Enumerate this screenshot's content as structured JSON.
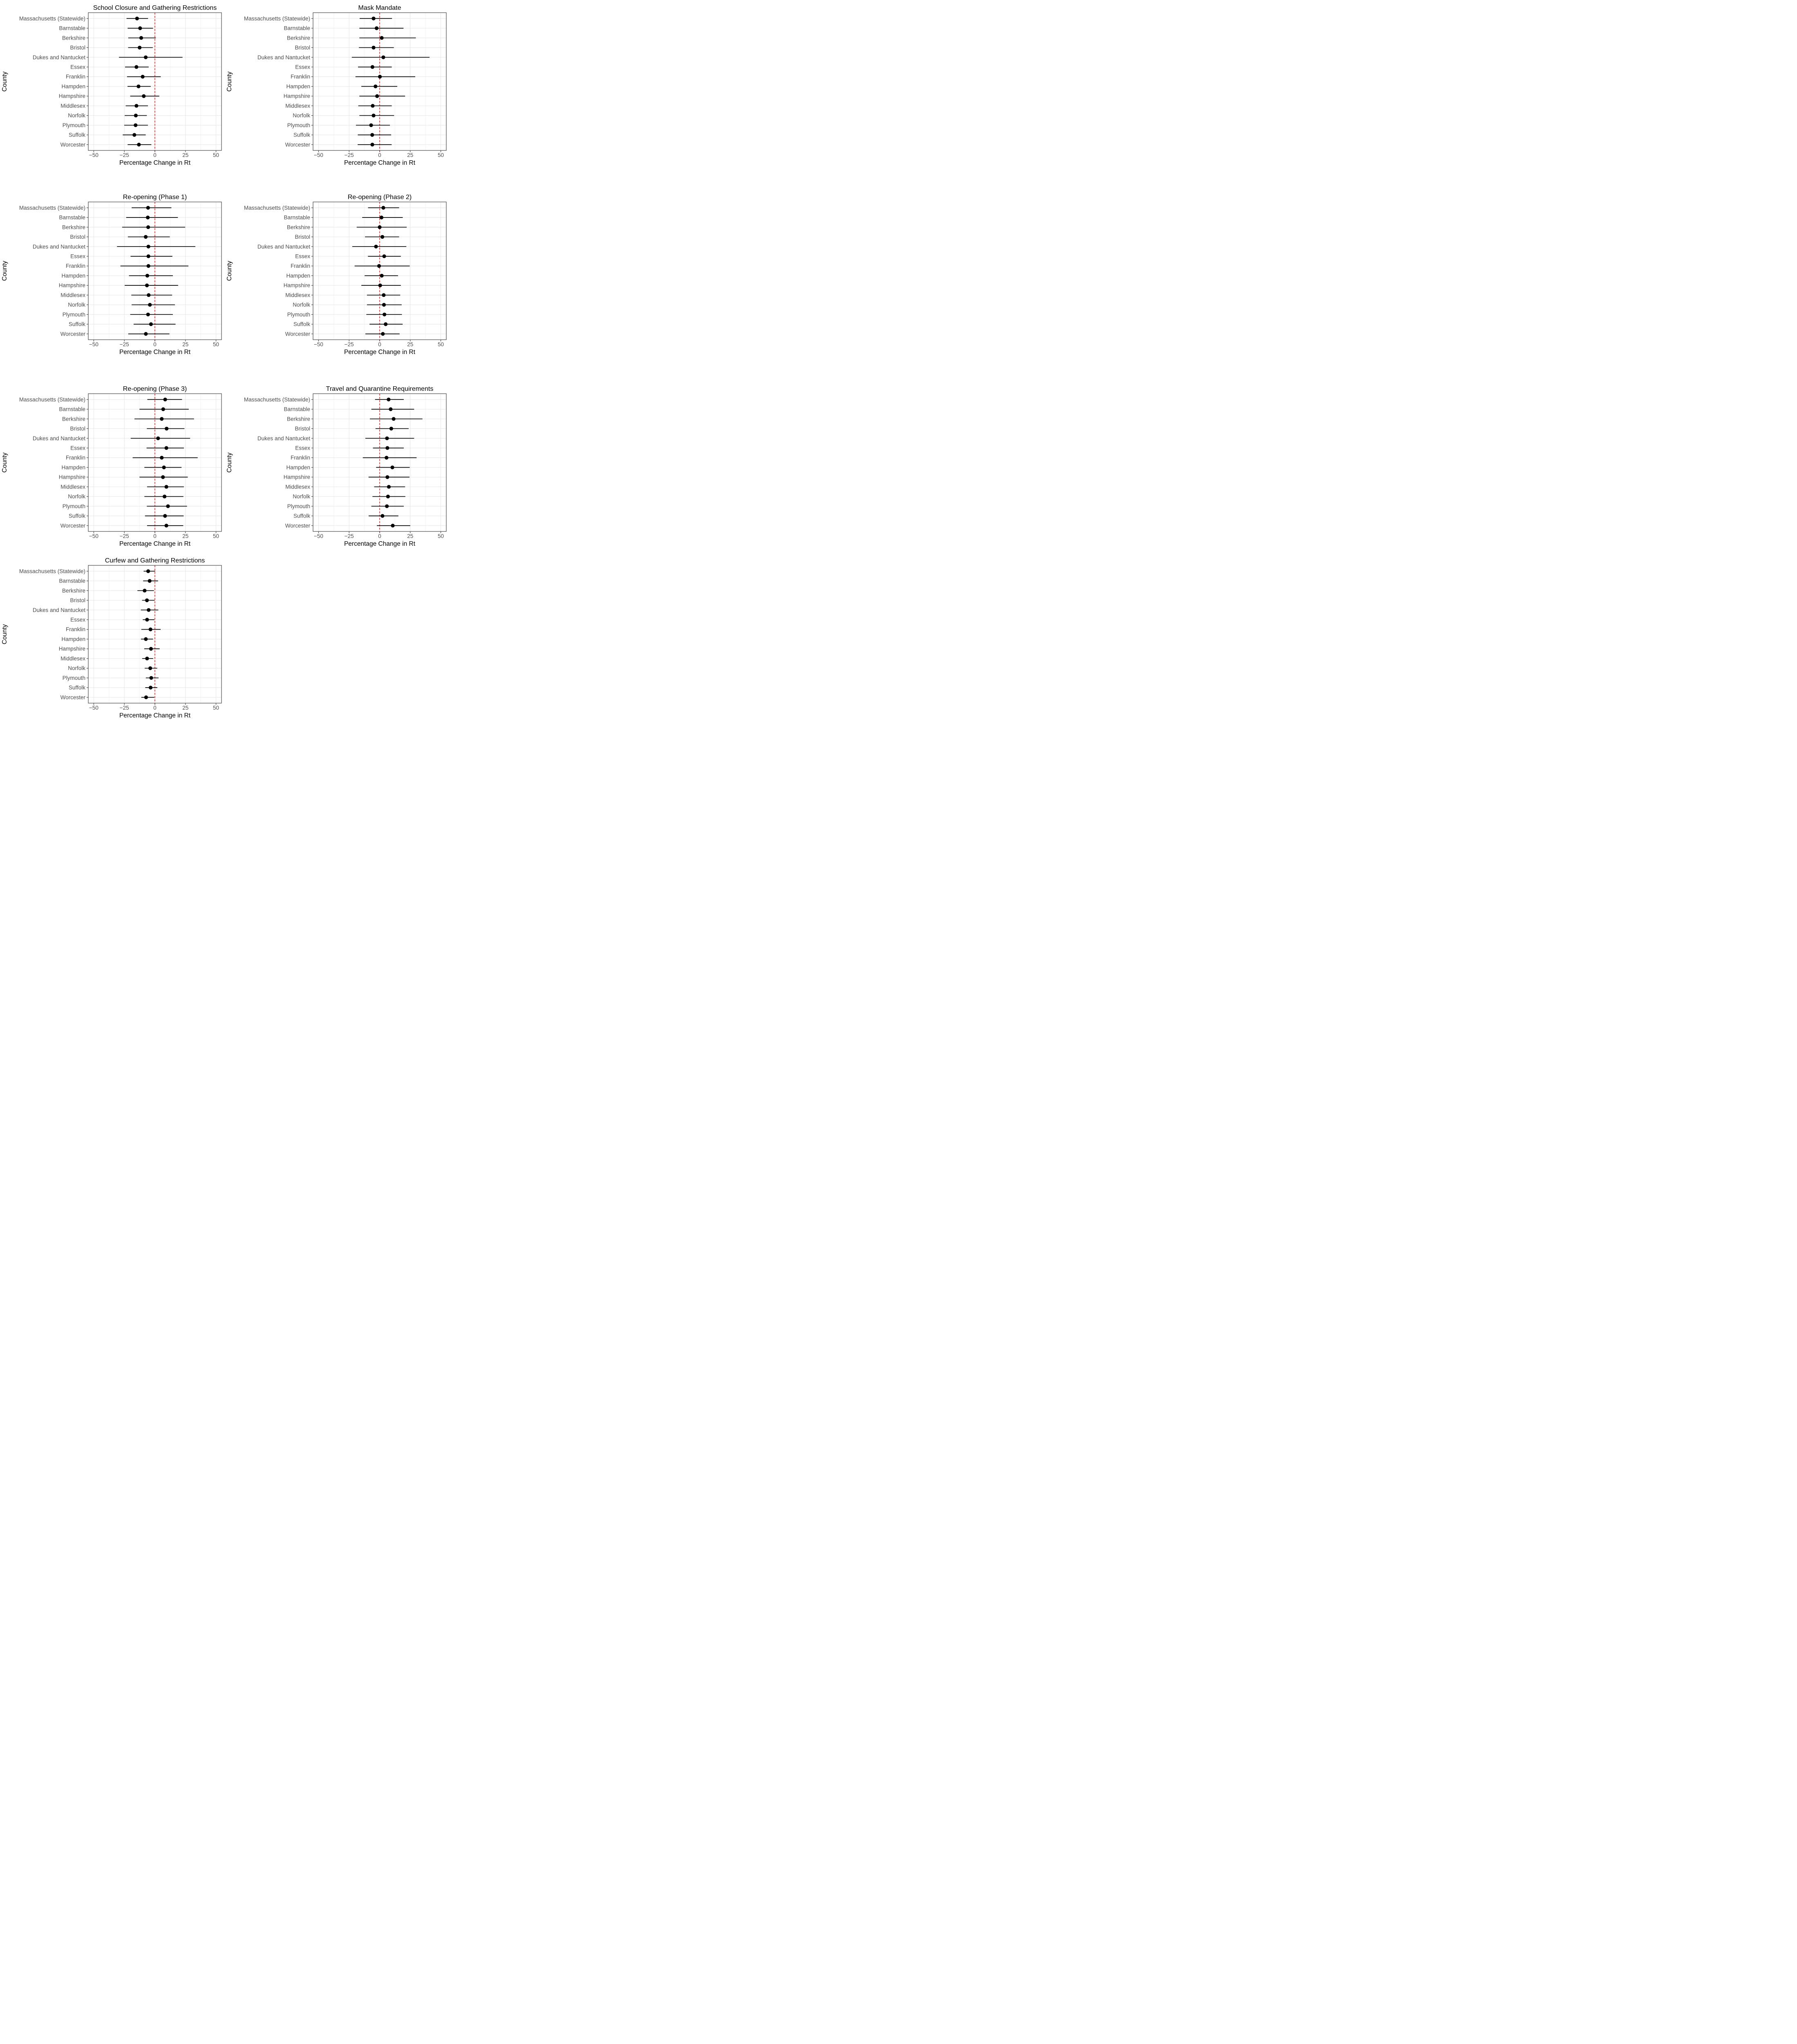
{
  "figure": {
    "xlabel": "Percentage Change in Rt",
    "ylabel": "County",
    "x_tick_labels": [
      "−50",
      "−25",
      "0",
      "25",
      "50"
    ],
    "x_ticks": [
      -50,
      -25,
      0,
      25,
      50
    ],
    "x_minor_ticks": [
      -37.5,
      -12.5,
      12.5,
      37.5
    ],
    "xlim": [
      -54.5,
      54.5
    ],
    "reference_line_x": 0,
    "counties": [
      "Massachusetts (Statewide)",
      "Barnstable",
      "Berkshire",
      "Bristol",
      "Dukes and Nantucket",
      "Essex",
      "Franklin",
      "Hampden",
      "Hampshire",
      "Middlesex",
      "Norfolk",
      "Plymouth",
      "Suffolk",
      "Worcester"
    ],
    "colors": {
      "point": "#000000",
      "ci_line": "#000000",
      "reference_line": "#ff0000",
      "grid_major": "#e6e6e6",
      "grid_minor": "#f2f2f2",
      "axis_text": "#4d4d4d",
      "axis_title": "#000000",
      "panel_border": "#474747",
      "tick_mark": "#333333",
      "background": "#ffffff"
    }
  },
  "chart_data": [
    {
      "type": "scatter",
      "title": "School Closure and Gathering Restrictions",
      "xlabel": "Percentage Change in Rt",
      "ylabel": "County",
      "x_ticks": [
        -50,
        -25,
        0,
        25,
        50
      ],
      "xlim": [
        -54.5,
        54.5
      ],
      "ref_line_x": 0,
      "grid": true,
      "legend": "none",
      "layout": {
        "row": 0,
        "col": 0
      },
      "categories": [
        "Massachusetts (Statewide)",
        "Barnstable",
        "Berkshire",
        "Bristol",
        "Dukes and Nantucket",
        "Essex",
        "Franklin",
        "Hampden",
        "Hampshire",
        "Middlesex",
        "Norfolk",
        "Plymouth",
        "Suffolk",
        "Worcester"
      ],
      "estimates": [
        -14.6,
        -12.1,
        -11.2,
        -12.5,
        -7.5,
        -15.1,
        -10.0,
        -13.4,
        -9.1,
        -15.1,
        -15.6,
        -15.8,
        -16.8,
        -13.1
      ],
      "ci_lower": [
        -23.2,
        -22.3,
        -21.8,
        -21.9,
        -29.4,
        -24.4,
        -22.8,
        -22.4,
        -20.2,
        -23.9,
        -24.7,
        -25.1,
        -26.3,
        -22.3
      ],
      "ci_upper": [
        -5.6,
        -1.5,
        0.8,
        -1.7,
        22.6,
        -5.1,
        4.8,
        -3.4,
        3.6,
        -5.7,
        -6.6,
        -5.7,
        -7.5,
        -2.9
      ]
    },
    {
      "type": "scatter",
      "title": "Mask Mandate",
      "xlabel": "Percentage Change in Rt",
      "ylabel": "County",
      "x_ticks": [
        -50,
        -25,
        0,
        25,
        50
      ],
      "xlim": [
        -54.5,
        54.5
      ],
      "ref_line_x": 0,
      "grid": true,
      "legend": "none",
      "layout": {
        "row": 0,
        "col": 1
      },
      "categories": [
        "Massachusetts (Statewide)",
        "Barnstable",
        "Berkshire",
        "Bristol",
        "Dukes and Nantucket",
        "Essex",
        "Franklin",
        "Hampden",
        "Hampshire",
        "Middlesex",
        "Norfolk",
        "Plymouth",
        "Suffolk",
        "Worcester"
      ],
      "estimates": [
        -5.0,
        -2.5,
        1.7,
        -5.0,
        3.0,
        -5.9,
        0.2,
        -3.4,
        -2.1,
        -5.7,
        -5.0,
        -7.0,
        -6.1,
        -6.0
      ],
      "ci_lower": [
        -16.4,
        -16.6,
        -16.6,
        -17.0,
        -22.8,
        -17.7,
        -19.8,
        -15.0,
        -16.6,
        -17.5,
        -16.6,
        -19.4,
        -17.9,
        -18.0
      ],
      "ci_upper": [
        10.1,
        19.5,
        29.6,
        11.6,
        40.8,
        9.9,
        29.1,
        14.4,
        20.8,
        9.9,
        11.8,
        8.4,
        9.4,
        9.8
      ]
    },
    {
      "type": "scatter",
      "title": "Re-opening (Phase 1)",
      "xlabel": "Percentage Change in Rt",
      "ylabel": "County",
      "x_ticks": [
        -50,
        -25,
        0,
        25,
        50
      ],
      "xlim": [
        -54.5,
        54.5
      ],
      "ref_line_x": 0,
      "grid": true,
      "legend": "none",
      "layout": {
        "row": 1,
        "col": 0
      },
      "categories": [
        "Massachusetts (Statewide)",
        "Barnstable",
        "Berkshire",
        "Bristol",
        "Dukes and Nantucket",
        "Essex",
        "Franklin",
        "Hampden",
        "Hampshire",
        "Middlesex",
        "Norfolk",
        "Plymouth",
        "Suffolk",
        "Worcester"
      ],
      "estimates": [
        -5.6,
        -5.8,
        -5.5,
        -7.5,
        -5.3,
        -5.3,
        -5.3,
        -6.2,
        -6.5,
        -5.1,
        -4.1,
        -5.6,
        -3.2,
        -7.4
      ],
      "ci_lower": [
        -19.0,
        -23.5,
        -26.8,
        -22.1,
        -31.0,
        -19.9,
        -28.2,
        -21.2,
        -24.7,
        -19.3,
        -19.0,
        -20.2,
        -17.4,
        -21.8
      ],
      "ci_upper": [
        13.5,
        18.8,
        24.8,
        12.2,
        33.1,
        14.3,
        27.4,
        14.7,
        19.0,
        14.1,
        16.4,
        14.7,
        16.9,
        11.9
      ]
    },
    {
      "type": "scatter",
      "title": "Re-opening (Phase 2)",
      "xlabel": "Percentage Change in Rt",
      "ylabel": "County",
      "x_ticks": [
        -50,
        -25,
        0,
        25,
        50
      ],
      "xlim": [
        -54.5,
        54.5
      ],
      "ref_line_x": 0,
      "grid": true,
      "legend": "none",
      "layout": {
        "row": 1,
        "col": 1
      },
      "categories": [
        "Massachusetts (Statewide)",
        "Barnstable",
        "Berkshire",
        "Bristol",
        "Dukes and Nantucket",
        "Essex",
        "Franklin",
        "Hampden",
        "Hampshire",
        "Middlesex",
        "Norfolk",
        "Plymouth",
        "Suffolk",
        "Worcester"
      ],
      "estimates": [
        3.0,
        1.5,
        0.0,
        2.2,
        -3.0,
        3.7,
        -0.5,
        1.7,
        0.4,
        3.3,
        3.5,
        3.9,
        4.9,
        2.6
      ],
      "ci_lower": [
        -9.5,
        -14.3,
        -18.8,
        -12.0,
        -22.4,
        -9.6,
        -20.5,
        -12.3,
        -15.0,
        -10.4,
        -10.4,
        -10.9,
        -8.3,
        -11.7
      ],
      "ci_upper": [
        15.9,
        18.9,
        22.1,
        15.9,
        21.8,
        17.3,
        24.6,
        15.0,
        17.3,
        16.8,
        18.0,
        18.2,
        18.8,
        16.3
      ]
    },
    {
      "type": "scatter",
      "title": "Re-opening (Phase 3)",
      "xlabel": "Percentage Change in Rt",
      "ylabel": "County",
      "x_ticks": [
        -50,
        -25,
        0,
        25,
        50
      ],
      "xlim": [
        -54.5,
        54.5
      ],
      "ref_line_x": 0,
      "grid": true,
      "legend": "none",
      "layout": {
        "row": 2,
        "col": 0
      },
      "categories": [
        "Massachusetts (Statewide)",
        "Barnstable",
        "Berkshire",
        "Bristol",
        "Dukes and Nantucket",
        "Essex",
        "Franklin",
        "Hampden",
        "Hampshire",
        "Middlesex",
        "Norfolk",
        "Plymouth",
        "Suffolk",
        "Worcester"
      ],
      "estimates": [
        8.4,
        6.8,
        5.6,
        9.6,
        2.6,
        9.4,
        5.6,
        7.4,
        6.6,
        9.4,
        7.9,
        10.7,
        8.3,
        9.4
      ],
      "ci_lower": [
        -6.2,
        -12.6,
        -16.7,
        -6.6,
        -19.8,
        -6.8,
        -18.2,
        -8.6,
        -12.6,
        -6.4,
        -8.6,
        -6.6,
        -8.1,
        -6.4
      ],
      "ci_upper": [
        22.2,
        27.7,
        32.0,
        24.2,
        28.8,
        23.7,
        35.0,
        21.8,
        26.9,
        23.7,
        23.3,
        26.3,
        23.5,
        23.2
      ]
    },
    {
      "type": "scatter",
      "title": "Travel and Quarantine Requirements",
      "xlabel": "Percentage Change in Rt",
      "ylabel": "County",
      "x_ticks": [
        -50,
        -25,
        0,
        25,
        50
      ],
      "xlim": [
        -54.5,
        54.5
      ],
      "ref_line_x": 0,
      "grid": true,
      "legend": "none",
      "layout": {
        "row": 2,
        "col": 1
      },
      "categories": [
        "Massachusetts (Statewide)",
        "Barnstable",
        "Berkshire",
        "Bristol",
        "Dukes and Nantucket",
        "Essex",
        "Franklin",
        "Hampden",
        "Hampshire",
        "Middlesex",
        "Norfolk",
        "Plymouth",
        "Suffolk",
        "Worcester"
      ],
      "estimates": [
        7.3,
        9.0,
        11.4,
        9.5,
        6.0,
        6.3,
        5.6,
        10.4,
        6.3,
        7.5,
        6.8,
        5.9,
        2.3,
        10.7
      ],
      "ci_lower": [
        -3.8,
        -6.8,
        -8.0,
        -3.4,
        -11.7,
        -5.5,
        -13.8,
        -2.9,
        -9.1,
        -4.5,
        -5.9,
        -6.8,
        -9.0,
        -2.3
      ],
      "ci_upper": [
        19.7,
        28.2,
        35.0,
        23.7,
        28.2,
        19.7,
        30.2,
        24.6,
        24.4,
        20.8,
        21.0,
        19.7,
        15.3,
        25.0
      ]
    },
    {
      "type": "scatter",
      "title": "Curfew and Gathering Restrictions",
      "xlabel": "Percentage Change in Rt",
      "ylabel": "County",
      "x_ticks": [
        -50,
        -25,
        0,
        25,
        50
      ],
      "xlim": [
        -54.5,
        54.5
      ],
      "ref_line_x": 0,
      "grid": true,
      "legend": "none",
      "layout": {
        "row": 3,
        "col": 0
      },
      "categories": [
        "Massachusetts (Statewide)",
        "Barnstable",
        "Berkshire",
        "Bristol",
        "Dukes and Nantucket",
        "Essex",
        "Franklin",
        "Hampden",
        "Hampshire",
        "Middlesex",
        "Norfolk",
        "Plymouth",
        "Suffolk",
        "Worcester"
      ],
      "estimates": [
        -5.5,
        -4.3,
        -8.4,
        -6.5,
        -5.1,
        -6.4,
        -3.6,
        -7.4,
        -3.2,
        -6.4,
        -3.8,
        -3.0,
        -3.5,
        -7.2
      ],
      "ci_lower": [
        -9.2,
        -9.6,
        -14.3,
        -10.5,
        -11.5,
        -9.9,
        -11.1,
        -11.4,
        -8.7,
        -10.4,
        -8.3,
        -7.4,
        -7.9,
        -11.1
      ],
      "ci_upper": [
        0.2,
        2.6,
        -0.8,
        -0.2,
        2.8,
        -0.4,
        4.7,
        -1.5,
        3.9,
        -1.4,
        1.9,
        3.0,
        2.0,
        -0.5
      ]
    }
  ]
}
